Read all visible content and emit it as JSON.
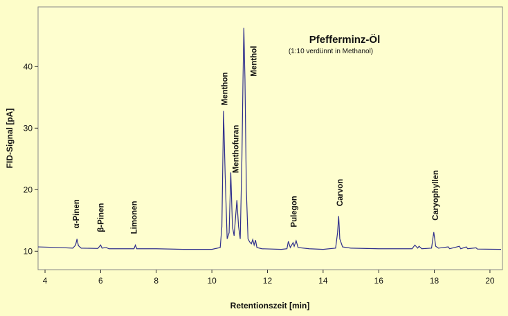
{
  "chart_data": {
    "type": "line",
    "title": "Pfefferminz-Öl",
    "subtitle": "(1:10 verdünnt in Methanol)",
    "x_label": "Retentionszeit [min]",
    "y_label": "FID-Signal [pA]",
    "xlim": [
      3.75,
      20.45
    ],
    "ylim": [
      7,
      49.7
    ],
    "xticks": [
      4,
      6,
      8,
      10,
      12,
      14,
      16,
      18,
      20
    ],
    "yticks": [
      10,
      20,
      30,
      40
    ],
    "color": "#2e2e8c",
    "x": [
      3.75,
      4.5,
      5.0,
      5.1,
      5.15,
      5.2,
      5.3,
      5.9,
      6.0,
      6.05,
      6.2,
      6.3,
      7.2,
      7.25,
      7.3,
      8.0,
      9.0,
      10.0,
      10.3,
      10.36,
      10.42,
      10.48,
      10.55,
      10.62,
      10.68,
      10.74,
      10.8,
      10.9,
      10.96,
      11.02,
      11.08,
      11.12,
      11.15,
      11.19,
      11.24,
      11.3,
      11.36,
      11.42,
      11.47,
      11.52,
      11.57,
      11.62,
      11.8,
      12.5,
      12.7,
      12.75,
      12.82,
      12.92,
      12.96,
      13.03,
      13.1,
      13.5,
      14.0,
      14.45,
      14.52,
      14.56,
      14.6,
      14.7,
      15.0,
      16.0,
      17.2,
      17.3,
      17.4,
      17.45,
      17.55,
      17.9,
      17.98,
      18.05,
      18.15,
      18.5,
      18.55,
      18.9,
      18.95,
      19.15,
      19.2,
      19.5,
      19.55,
      20.4
    ],
    "values": [
      10.7,
      10.6,
      10.5,
      11.0,
      12.0,
      10.9,
      10.5,
      10.45,
      11.0,
      10.5,
      10.6,
      10.4,
      10.4,
      11.0,
      10.4,
      10.4,
      10.3,
      10.3,
      10.6,
      14,
      32.8,
      22,
      12,
      13,
      22.8,
      14,
      12.5,
      18.3,
      14,
      12,
      25,
      38,
      46.3,
      38,
      20,
      12,
      11.5,
      11.2,
      11.9,
      11.0,
      11.8,
      10.6,
      10.4,
      10.3,
      10.4,
      11.6,
      10.6,
      11.4,
      10.8,
      11.7,
      10.6,
      10.4,
      10.3,
      10.5,
      13,
      15.7,
      12,
      10.7,
      10.5,
      10.4,
      10.4,
      11.0,
      10.5,
      10.8,
      10.4,
      10.5,
      13.1,
      10.8,
      10.5,
      10.7,
      10.4,
      10.8,
      10.4,
      10.7,
      10.4,
      10.55,
      10.35,
      10.3
    ],
    "annotations": [
      {
        "text": "α-Pinen",
        "x": 5.12,
        "y": 13.7
      },
      {
        "text": "β-Pinen",
        "x": 6.0,
        "y": 13.1
      },
      {
        "text": "Limonen",
        "x": 7.2,
        "y": 12.8
      },
      {
        "text": "Menthon",
        "x": 10.46,
        "y": 33.7
      },
      {
        "text": "Menthofuran",
        "x": 10.86,
        "y": 22.7
      },
      {
        "text": "Menthol",
        "x": 11.5,
        "y": 38.4
      },
      {
        "text": "Pulegon",
        "x": 12.95,
        "y": 13.9
      },
      {
        "text": "Carvon",
        "x": 14.6,
        "y": 17.3
      },
      {
        "text": "Caryophyllen",
        "x": 18.04,
        "y": 15
      }
    ]
  }
}
